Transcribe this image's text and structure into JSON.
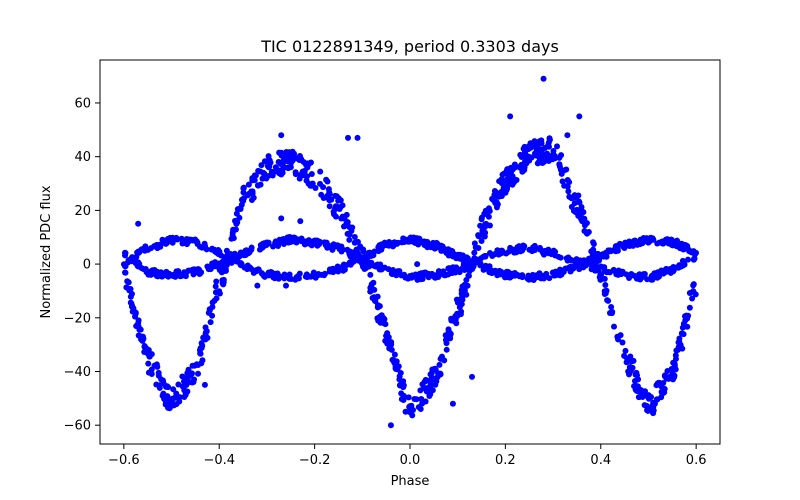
{
  "chart_data": {
    "type": "scatter",
    "title": "TIC 0122891349, period 0.3303 days",
    "xlabel": "Phase",
    "ylabel": "Normalized PDC flux",
    "xlim": [
      -0.65,
      0.65
    ],
    "ylim": [
      -67,
      76
    ],
    "xticks": [
      -0.6,
      -0.4,
      -0.2,
      0.0,
      0.2,
      0.4,
      0.6
    ],
    "xtick_labels": [
      "−0.6",
      "−0.4",
      "−0.2",
      "0.0",
      "0.2",
      "0.4",
      "0.6"
    ],
    "yticks": [
      -60,
      -40,
      -20,
      0,
      20,
      40,
      60
    ],
    "ytick_labels": [
      "−60",
      "−40",
      "−20",
      "0",
      "20",
      "40",
      "60"
    ],
    "grid": false,
    "marker_color": "#0000ff",
    "series": [
      {
        "x": [
          -0.6,
          -0.55,
          -0.5,
          -0.45,
          -0.4,
          -0.35,
          -0.3,
          -0.25,
          -0.2,
          -0.15,
          -0.1,
          -0.05,
          0.0,
          0.05,
          0.1,
          0.15,
          0.2,
          0.25,
          0.3,
          0.35,
          0.4,
          0.45,
          0.5,
          0.55,
          0.6
        ],
        "y": [
          -2,
          -36,
          -51,
          -40,
          -7,
          24,
          36,
          38,
          33,
          21,
          2,
          -25,
          -55,
          -43,
          -17,
          13,
          31,
          41,
          43,
          22,
          -3,
          -34,
          -53,
          -40,
          -8
        ]
      },
      {
        "x": [
          -0.6,
          -0.55,
          -0.5,
          -0.45,
          -0.4,
          -0.35,
          -0.3,
          -0.25,
          -0.2,
          -0.15,
          -0.1,
          -0.05,
          0.0,
          0.05,
          0.1,
          0.15,
          0.2,
          0.25,
          0.3,
          0.35,
          0.4,
          0.45,
          0.5,
          0.55,
          0.6
        ],
        "y": [
          0,
          6,
          9,
          8,
          4,
          -1,
          -4,
          -5,
          -4,
          -2,
          2,
          7,
          9,
          7,
          3,
          -1,
          -4,
          -5,
          -4,
          -1,
          3,
          7,
          9,
          8,
          5
        ]
      },
      {
        "x": [
          -0.6,
          -0.55,
          -0.5,
          -0.45,
          -0.4,
          -0.35,
          -0.3,
          -0.25,
          -0.2,
          -0.15,
          -0.1,
          -0.05,
          0.0,
          0.05,
          0.1,
          0.15,
          0.2,
          0.25,
          0.3,
          0.35,
          0.4,
          0.45,
          0.5,
          0.55,
          0.6
        ],
        "y": [
          4,
          -3,
          -4,
          -3,
          0,
          4,
          7,
          9,
          8,
          6,
          2,
          -2,
          -5,
          -4,
          -2,
          2,
          5,
          6,
          4,
          1,
          -2,
          -4,
          -5,
          -2,
          3
        ]
      },
      {
        "x": [
          0.28,
          0.21,
          0.355,
          -0.13,
          0.09,
          -0.27,
          -0.26,
          -0.32,
          0.015,
          -0.43,
          -0.11,
          -0.57,
          0.33,
          -0.04,
          -0.23,
          -0.27,
          0.13
        ],
        "y": [
          69,
          55,
          55,
          47,
          -52,
          48,
          -8,
          -8,
          0,
          -45,
          47,
          15,
          48,
          -60,
          16,
          17,
          -42
        ]
      }
    ]
  }
}
